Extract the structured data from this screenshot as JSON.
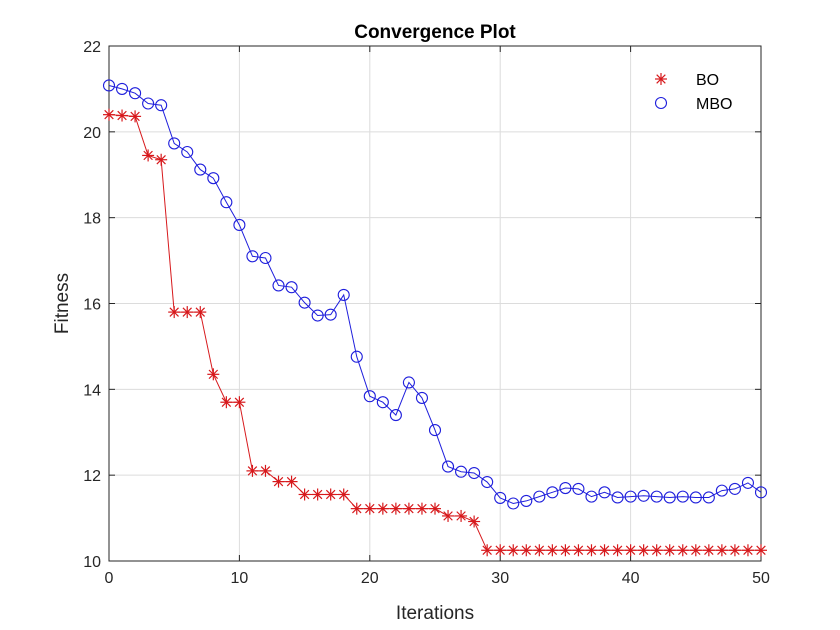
{
  "chart_data": {
    "type": "line",
    "title": "Convergence Plot",
    "xlabel": "Iterations",
    "ylabel": "Fitness",
    "xlim": [
      0,
      50
    ],
    "ylim": [
      10,
      22
    ],
    "xticks": [
      0,
      10,
      20,
      30,
      40,
      50
    ],
    "yticks": [
      10,
      12,
      14,
      16,
      18,
      20,
      22
    ],
    "grid": true,
    "legend_position": "top-right",
    "series": [
      {
        "name": "BO",
        "color": "#d7191c",
        "marker": "asterisk",
        "x": [
          0,
          1,
          2,
          3,
          4,
          5,
          6,
          7,
          8,
          9,
          10,
          11,
          12,
          13,
          14,
          15,
          16,
          17,
          18,
          19,
          20,
          21,
          22,
          23,
          24,
          25,
          26,
          27,
          28,
          29,
          30,
          31,
          32,
          33,
          34,
          35,
          36,
          37,
          38,
          39,
          40,
          41,
          42,
          43,
          44,
          45,
          46,
          47,
          48,
          49,
          50
        ],
        "values": [
          20.4,
          20.38,
          20.36,
          19.45,
          19.35,
          15.8,
          15.8,
          15.8,
          14.35,
          13.7,
          13.7,
          12.1,
          12.1,
          11.85,
          11.85,
          11.55,
          11.55,
          11.55,
          11.55,
          11.22,
          11.22,
          11.22,
          11.22,
          11.22,
          11.22,
          11.22,
          11.05,
          11.05,
          10.92,
          10.25,
          10.25,
          10.25,
          10.25,
          10.25,
          10.25,
          10.25,
          10.25,
          10.25,
          10.25,
          10.25,
          10.25,
          10.25,
          10.25,
          10.25,
          10.25,
          10.25,
          10.25,
          10.25,
          10.25,
          10.25,
          10.25
        ]
      },
      {
        "name": "MBO",
        "color": "#1f1fdc",
        "marker": "circle",
        "x": [
          0,
          1,
          2,
          3,
          4,
          5,
          6,
          7,
          8,
          9,
          10,
          11,
          12,
          13,
          14,
          15,
          16,
          17,
          18,
          19,
          20,
          21,
          22,
          23,
          24,
          25,
          26,
          27,
          28,
          29,
          30,
          31,
          32,
          33,
          34,
          35,
          36,
          37,
          38,
          39,
          40,
          41,
          42,
          43,
          44,
          45,
          46,
          47,
          48,
          49,
          50
        ],
        "values": [
          21.08,
          21.0,
          20.9,
          20.66,
          20.62,
          19.73,
          19.53,
          19.12,
          18.92,
          18.36,
          17.83,
          17.1,
          17.06,
          16.42,
          16.38,
          16.02,
          15.72,
          15.74,
          16.2,
          14.76,
          13.84,
          13.7,
          13.4,
          14.16,
          13.8,
          13.05,
          12.2,
          12.08,
          12.05,
          11.84,
          11.47,
          11.34,
          11.4,
          11.5,
          11.6,
          11.7,
          11.68,
          11.5,
          11.6,
          11.48,
          11.5,
          11.52,
          11.5,
          11.48,
          11.5,
          11.48,
          11.48,
          11.64,
          11.68,
          11.82,
          11.6
        ]
      }
    ]
  }
}
